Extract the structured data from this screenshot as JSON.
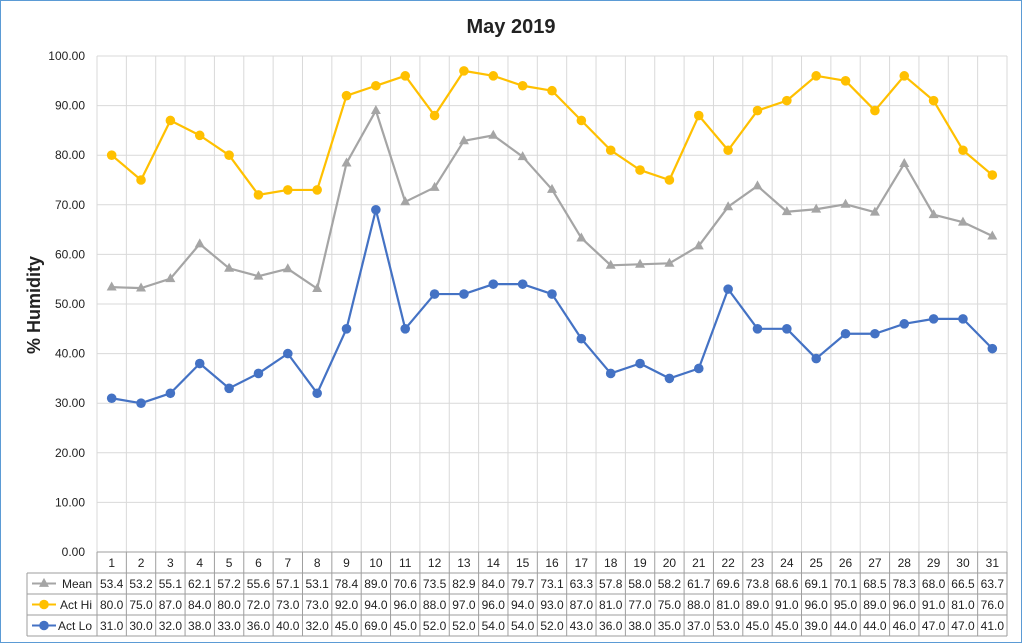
{
  "chart_data": {
    "type": "line",
    "title": "May 2019",
    "ylabel": "% Humidity",
    "xlabel": "",
    "ylim": [
      0,
      100
    ],
    "y_ticks": [
      "0.00",
      "10.00",
      "20.00",
      "30.00",
      "40.00",
      "50.00",
      "60.00",
      "70.00",
      "80.00",
      "90.00",
      "100.00"
    ],
    "categories": [
      "1",
      "2",
      "3",
      "4",
      "5",
      "6",
      "7",
      "8",
      "9",
      "10",
      "11",
      "12",
      "13",
      "14",
      "15",
      "16",
      "17",
      "18",
      "19",
      "20",
      "21",
      "22",
      "23",
      "24",
      "25",
      "26",
      "27",
      "28",
      "29",
      "30",
      "31"
    ],
    "grid": true,
    "legend": "data-table",
    "series": [
      {
        "name": "Mean",
        "color": "#a5a5a5",
        "marker": "triangle",
        "values": [
          53.4,
          53.2,
          55.1,
          62.1,
          57.2,
          55.6,
          57.1,
          53.1,
          78.4,
          89.0,
          70.6,
          73.5,
          82.9,
          84.0,
          79.7,
          73.1,
          63.3,
          57.8,
          58.0,
          58.2,
          61.7,
          69.6,
          73.8,
          68.6,
          69.1,
          70.1,
          68.5,
          78.3,
          68.0,
          66.5,
          63.7
        ],
        "labels": [
          "53.4",
          "53.2",
          "55.1",
          "62.1",
          "57.2",
          "55.6",
          "57.1",
          "53.1",
          "78.4",
          "89.0",
          "70.6",
          "73.5",
          "82.9",
          "84.0",
          "79.7",
          "73.1",
          "63.3",
          "57.8",
          "58.0",
          "58.2",
          "61.7",
          "69.6",
          "73.8",
          "68.6",
          "69.1",
          "70.1",
          "68.5",
          "78.3",
          "68.0",
          "66.5",
          "63.7"
        ]
      },
      {
        "name": "Act Hi",
        "color": "#ffc000",
        "marker": "circle",
        "values": [
          80,
          75,
          87,
          84,
          80,
          72,
          73,
          73,
          92,
          94,
          96,
          88,
          97,
          96,
          94,
          93,
          87,
          81,
          77,
          75,
          88,
          81,
          89,
          91,
          96,
          95,
          89,
          96,
          91,
          81,
          76
        ],
        "labels": [
          "80.0",
          "75.0",
          "87.0",
          "84.0",
          "80.0",
          "72.0",
          "73.0",
          "73.0",
          "92.0",
          "94.0",
          "96.0",
          "88.0",
          "97.0",
          "96.0",
          "94.0",
          "93.0",
          "87.0",
          "81.0",
          "77.0",
          "75.0",
          "88.0",
          "81.0",
          "89.0",
          "91.0",
          "96.0",
          "95.0",
          "89.0",
          "96.0",
          "91.0",
          "81.0",
          "76.0"
        ]
      },
      {
        "name": "Act Lo",
        "color": "#4472c4",
        "marker": "circle",
        "values": [
          31,
          30,
          32,
          38,
          33,
          36,
          40,
          32,
          45,
          69,
          45,
          52,
          52,
          54,
          54,
          52,
          43,
          36,
          38,
          35,
          37,
          53,
          45,
          45,
          39,
          44,
          44,
          46,
          47,
          47,
          41
        ],
        "labels": [
          "31.0",
          "30.0",
          "32.0",
          "38.0",
          "33.0",
          "36.0",
          "40.0",
          "32.0",
          "45.0",
          "69.0",
          "45.0",
          "52.0",
          "52.0",
          "54.0",
          "54.0",
          "52.0",
          "43.0",
          "36.0",
          "38.0",
          "35.0",
          "37.0",
          "53.0",
          "45.0",
          "45.0",
          "39.0",
          "44.0",
          "44.0",
          "46.0",
          "47.0",
          "47.0",
          "41.0"
        ]
      }
    ]
  }
}
